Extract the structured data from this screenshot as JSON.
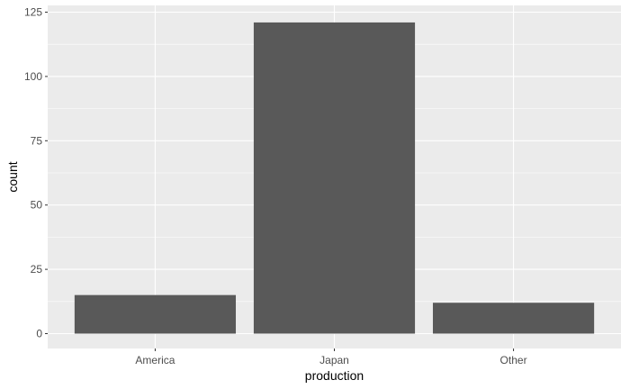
{
  "chart_data": {
    "type": "bar",
    "categories": [
      "America",
      "Japan",
      "Other"
    ],
    "values": [
      15,
      121,
      12
    ],
    "xlabel": "production",
    "ylabel": "count",
    "ylim": [
      0,
      126
    ],
    "yticks": [
      0,
      25,
      50,
      75,
      100,
      125
    ],
    "grid": true,
    "colors": {
      "panel_background": "#ebebeb",
      "grid_major": "#ffffff",
      "bar_fill": "#595959"
    }
  }
}
